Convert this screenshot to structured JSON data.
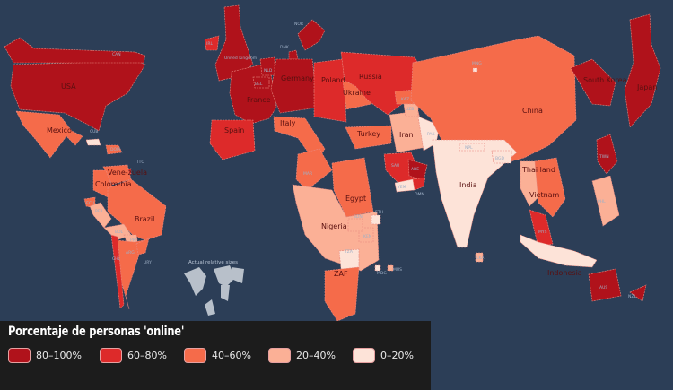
{
  "legend": {
    "title": "Porcentaje de personas 'online'",
    "bins": [
      {
        "label": "80–100%",
        "color": "#b0121b"
      },
      {
        "label": "60–80%",
        "color": "#dd2a2a"
      },
      {
        "label": "40–60%",
        "color": "#f56b4a"
      },
      {
        "label": "20–40%",
        "color": "#fbb096"
      },
      {
        "label": "0–20%",
        "color": "#fde3d8"
      }
    ]
  },
  "inset_caption": "Actual relative sizes",
  "countries": [
    {
      "name": "USA",
      "bin": 0
    },
    {
      "name": "CAN",
      "bin": 0
    },
    {
      "name": "Mexico",
      "bin": 2
    },
    {
      "name": "CUB",
      "bin": 4
    },
    {
      "name": "DOM",
      "bin": 2
    },
    {
      "name": "TTO",
      "bin": 1
    },
    {
      "name": "Vene-zuela",
      "bin": 2
    },
    {
      "name": "Colom-bia",
      "bin": 2
    },
    {
      "name": "ECU",
      "bin": 2
    },
    {
      "name": "PER",
      "bin": 3
    },
    {
      "name": "Brazil",
      "bin": 2
    },
    {
      "name": "BOL",
      "bin": 3
    },
    {
      "name": "PRY",
      "bin": 3
    },
    {
      "name": "ARG",
      "bin": 2
    },
    {
      "name": "CHL",
      "bin": 1
    },
    {
      "name": "URY",
      "bin": 2
    },
    {
      "name": "United Kingdom",
      "bin": 0
    },
    {
      "name": "IRL",
      "bin": 1
    },
    {
      "name": "NOR",
      "bin": 0
    },
    {
      "name": "DNK",
      "bin": 0
    },
    {
      "name": "France",
      "bin": 0
    },
    {
      "name": "Germany",
      "bin": 0
    },
    {
      "name": "NLD",
      "bin": 0
    },
    {
      "name": "BEL",
      "bin": 0
    },
    {
      "name": "Poland",
      "bin": 1
    },
    {
      "name": "Ukraine",
      "bin": 2
    },
    {
      "name": "Russia",
      "bin": 1
    },
    {
      "name": "Spain",
      "bin": 1
    },
    {
      "name": "Italy",
      "bin": 2
    },
    {
      "name": "Turkey",
      "bin": 2
    },
    {
      "name": "Iran",
      "bin": 3
    },
    {
      "name": "KAZ",
      "bin": 2
    },
    {
      "name": "UZB",
      "bin": 3
    },
    {
      "name": "PAK",
      "bin": 4
    },
    {
      "name": "China",
      "bin": 2
    },
    {
      "name": "MNG",
      "bin": 4
    },
    {
      "name": "India",
      "bin": 4
    },
    {
      "name": "BGD",
      "bin": 4
    },
    {
      "name": "NPL",
      "bin": 4
    },
    {
      "name": "LKA",
      "bin": 3
    },
    {
      "name": "Thai land",
      "bin": 3
    },
    {
      "name": "Vietnam",
      "bin": 2
    },
    {
      "name": "MYS",
      "bin": 1
    },
    {
      "name": "PHL",
      "bin": 3
    },
    {
      "name": "Indonesia",
      "bin": 4
    },
    {
      "name": "South Korea",
      "bin": 0
    },
    {
      "name": "Japan",
      "bin": 0
    },
    {
      "name": "TWN",
      "bin": 0
    },
    {
      "name": "AUS",
      "bin": 0
    },
    {
      "name": "NZL",
      "bin": 0
    },
    {
      "name": "SAU",
      "bin": 1
    },
    {
      "name": "ARE",
      "bin": 0
    },
    {
      "name": "YEM",
      "bin": 4
    },
    {
      "name": "OMN",
      "bin": 1
    },
    {
      "name": "MAR",
      "bin": 2
    },
    {
      "name": "Egypt",
      "bin": 2
    },
    {
      "name": "Nigeria",
      "bin": 3
    },
    {
      "name": "KEN",
      "bin": 3
    },
    {
      "name": "SDN",
      "bin": 3
    },
    {
      "name": "ETH",
      "bin": 4
    },
    {
      "name": "TZA",
      "bin": 4
    },
    {
      "name": "ZAF",
      "bin": 2
    },
    {
      "name": "MDG",
      "bin": 4
    },
    {
      "name": "MUS",
      "bin": 3
    }
  ]
}
